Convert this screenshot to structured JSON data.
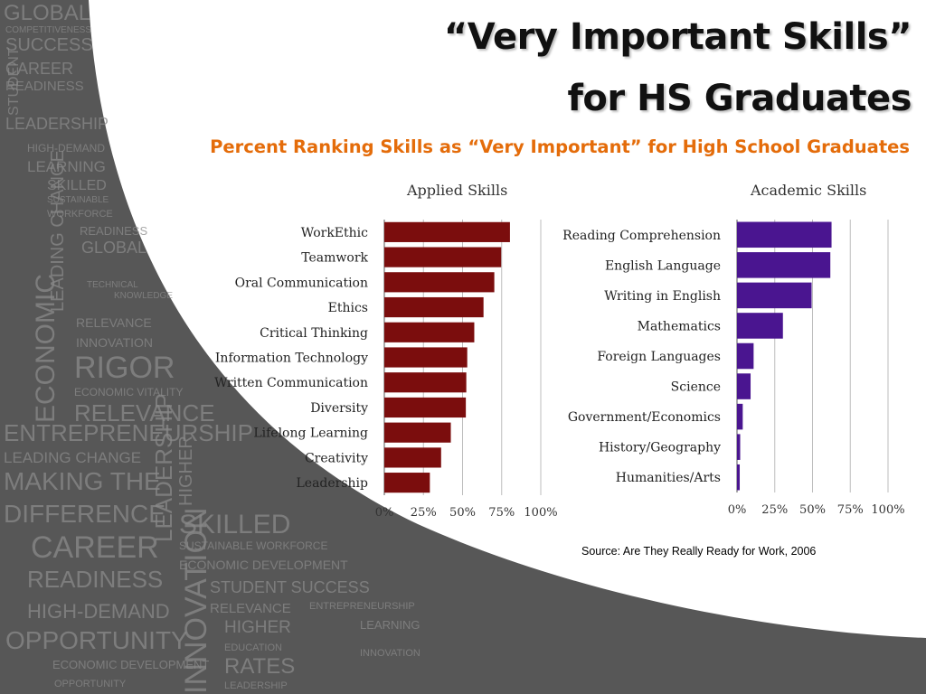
{
  "slide": {
    "title_line1": "“Very Important Skills”",
    "title_line2": "for HS Graduates",
    "subtitle": "Percent Ranking Skills as “Very Important” for High School Graduates",
    "source": "Source: Are They Really Ready for Work, 2006"
  },
  "background_words": [
    "GLOBAL",
    "COMPETITIVENESS",
    "SUCCESS",
    "CAREER",
    "READINESS",
    "LEADERSHIP",
    "HIGH-DEMAND",
    "LEARNING",
    "SKILLED",
    "SUSTAINABLE",
    "WORKFORCE",
    "READINESS",
    "GLOBAL",
    "TECHNICAL",
    "KNOWLEDGE",
    "RELEVANCE",
    "INNOVATION",
    "RIGOR",
    "ECONOMIC VITALITY",
    "RELEVANCE",
    "ENTREPRENEURSHIP",
    "LEADING CHANGE",
    "MAKING THE",
    "DIFFERENCE",
    "CAREER",
    "READINESS",
    "HIGH-DEMAND",
    "OPPORTUNITY",
    "SKILLED",
    "SUSTAINABLE WORKFORCE",
    "ECONOMIC DEVELOPMENT",
    "STUDENT SUCCESS",
    "RELEVANCE",
    "HIGHER",
    "EDUCATION",
    "RATES",
    "LEADERSHIP",
    "LEARNING",
    "INNOVATION",
    "ENTREPRENEURSHIP",
    "ECONOMIC DEVELOPMENT",
    "OPPORTUNITY",
    "STUDENT",
    "LEADING CHANGE",
    "ECONOMIC",
    "HIGHER",
    "LEADERSHIP",
    "INNOVATION"
  ],
  "colors": {
    "applied": "#7b0d0d",
    "academic": "#4a1590",
    "subtitle": "#e46c0a",
    "background_gray": "#575757"
  },
  "chart_data": [
    {
      "type": "bar",
      "orientation": "horizontal",
      "title": "Applied Skills",
      "categories": [
        "WorkEthic",
        "Teamwork",
        "Oral Communication",
        "Ethics",
        "Critical Thinking",
        "Information Technology",
        "Written Communication",
        "Diversity",
        "Lifelong Learning",
        "Creativity",
        "Leadership"
      ],
      "values": [
        80.3,
        74.7,
        70.3,
        63.4,
        57.5,
        53.0,
        52.4,
        52.1,
        42.5,
        36.3,
        29.1
      ],
      "xlim": [
        0,
        100
      ],
      "xticks": [
        "0%",
        "25%",
        "50%",
        "75%",
        "100%"
      ],
      "grid": true
    },
    {
      "type": "bar",
      "orientation": "horizontal",
      "title": "Academic Skills",
      "categories": [
        "Reading Comprehension",
        "English Language",
        "Writing in English",
        "Mathematics",
        "Foreign Languages",
        "Science",
        "Government/Economics",
        "History/Geography",
        "Humanities/Arts"
      ],
      "values": [
        62.6,
        61.8,
        49.4,
        30.4,
        11.0,
        9.0,
        3.8,
        2.1,
        1.8
      ],
      "xlim": [
        0,
        100
      ],
      "xticks": [
        "0%",
        "25%",
        "50%",
        "75%",
        "100%"
      ],
      "grid": true
    }
  ]
}
